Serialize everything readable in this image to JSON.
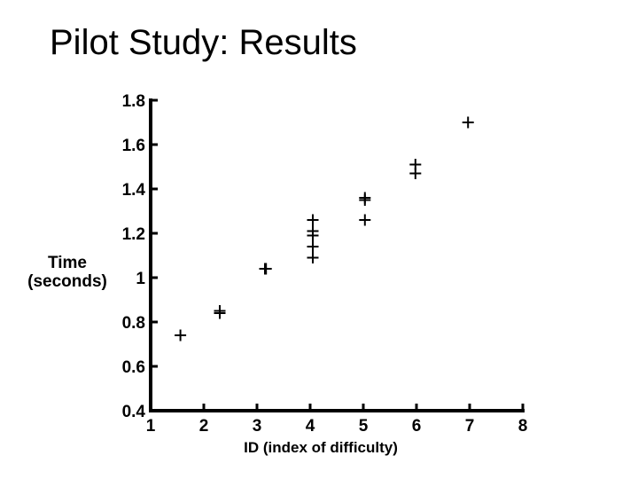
{
  "title": "Pilot Study: Results",
  "colors": {
    "foreground": "#000000",
    "background": "#ffffff"
  },
  "y_axis_label": {
    "line1": "Time",
    "line2": "(seconds)"
  },
  "chart_data": {
    "type": "scatter",
    "title": "",
    "xlabel": "ID (index of difficulty)",
    "ylabel": "Time (seconds)",
    "marker": "plus-marker",
    "marker_color": "#000000",
    "axis_color": "#000000",
    "background": "#ffffff",
    "grid": false,
    "legend": "none",
    "xlim": [
      1,
      8
    ],
    "ylim": [
      0.4,
      1.8
    ],
    "x_ticks": [
      1,
      2,
      3,
      4,
      5,
      6,
      7,
      8
    ],
    "x_tick_labels": [
      "1",
      "2",
      "3",
      "4",
      "5",
      "6",
      "7",
      "8"
    ],
    "y_ticks": [
      0.4,
      0.6,
      0.8,
      1,
      1.2,
      1.4,
      1.6,
      1.8
    ],
    "y_tick_labels": [
      "0.4",
      "0.6",
      "0.8",
      "1",
      "1.2",
      "1.4",
      "1.6",
      "1.8"
    ],
    "points": [
      [
        1.56,
        0.74
      ],
      [
        2.3,
        0.85
      ],
      [
        2.3,
        0.84
      ],
      [
        3.15,
        1.04
      ],
      [
        3.17,
        1.04
      ],
      [
        4.05,
        1.26
      ],
      [
        4.05,
        1.21
      ],
      [
        4.05,
        1.19
      ],
      [
        4.05,
        1.14
      ],
      [
        4.05,
        1.09
      ],
      [
        5.03,
        1.36
      ],
      [
        5.03,
        1.35
      ],
      [
        5.03,
        1.26
      ],
      [
        5.98,
        1.51
      ],
      [
        5.98,
        1.47
      ],
      [
        6.97,
        1.7
      ]
    ]
  }
}
